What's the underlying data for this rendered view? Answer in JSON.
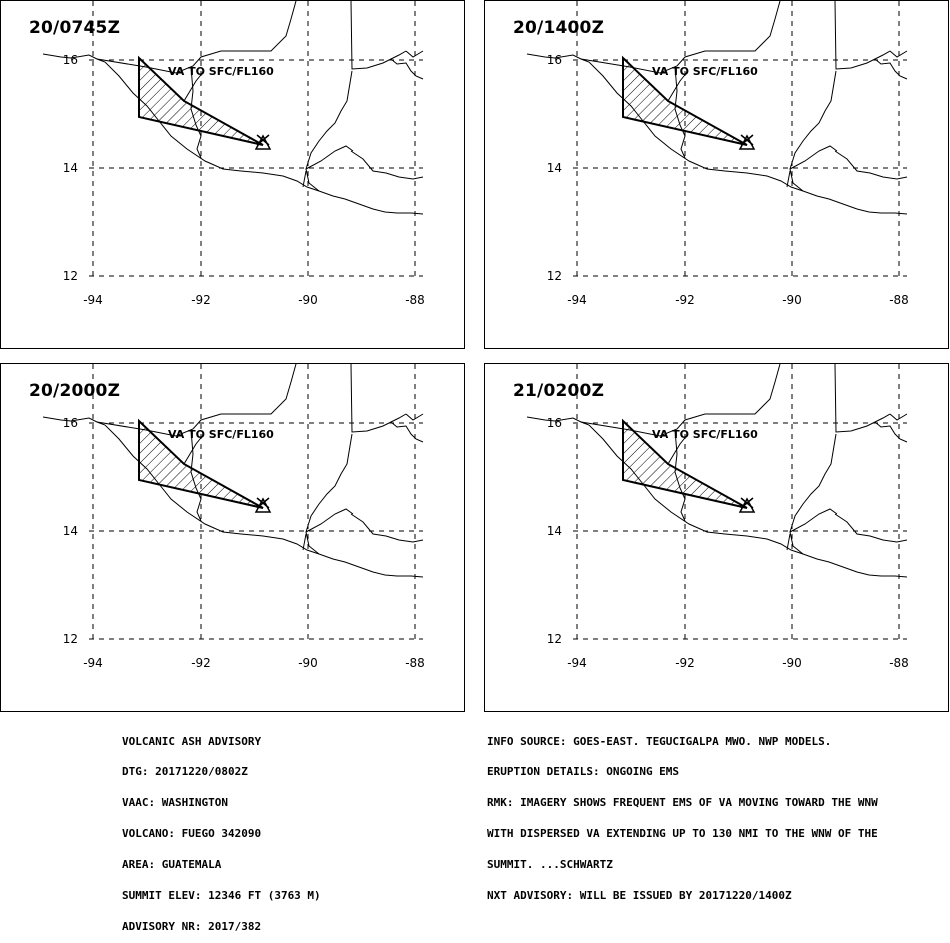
{
  "panels": [
    {
      "title": "20/0745Z",
      "label": "VA TO SFC/FL160"
    },
    {
      "title": "20/1400Z",
      "label": "VA TO SFC/FL160"
    },
    {
      "title": "20/2000Z",
      "label": "VA TO SFC/FL160"
    },
    {
      "title": "21/0200Z",
      "label": "VA TO SFC/FL160"
    }
  ],
  "lat_labels": [
    "16",
    "14",
    "12"
  ],
  "lon_labels": [
    "-94",
    "-92",
    "-90",
    "-88"
  ],
  "advisory_left": [
    "VOLCANIC ASH ADVISORY",
    "DTG: 20171220/0802Z",
    "VAAC: WASHINGTON",
    "VOLCANO: FUEGO 342090",
    "AREA: GUATEMALA",
    "SUMMIT ELEV: 12346 FT (3763 M)",
    "ADVISORY NR: 2017/382"
  ],
  "advisory_right": [
    "INFO SOURCE: GOES-EAST. TEGUCIGALPA MWO. NWP MODELS.",
    "ERUPTION DETAILS: ONGOING EMS",
    "RMK: IMAGERY SHOWS FREQUENT EMS OF VA MOVING TOWARD THE WNW",
    "WITH DISPERSED VA EXTENDING UP TO 130 NMI TO THE WNW OF THE",
    "SUMMIT. ...SCHWARTZ",
    "NXT ADVISORY: WILL BE ISSUED BY 20171220/1400Z"
  ],
  "colors": {
    "line": "#000000",
    "background": "#ffffff"
  },
  "icons": {
    "volcano": "volcano-triangle-icon"
  }
}
